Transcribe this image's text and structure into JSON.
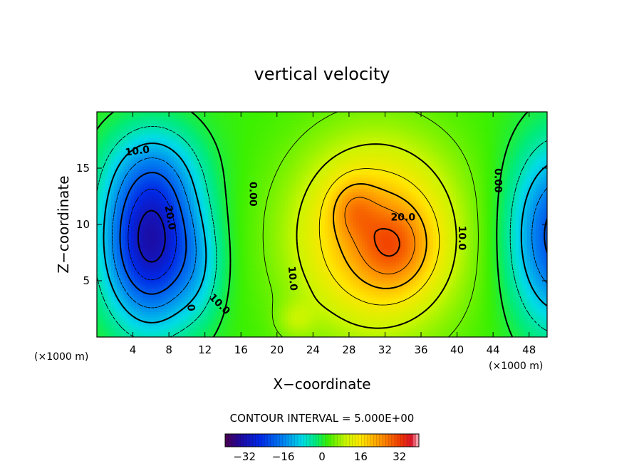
{
  "chart_data": {
    "type": "heatmap",
    "title": "vertical velocity",
    "xlabel": "X−coordinate",
    "ylabel": "Z−coordinate",
    "x_unit_left": "(×1000 m)",
    "x_unit_right": "(×1000 m)",
    "xlim": [
      0,
      50
    ],
    "ylim": [
      0,
      20
    ],
    "x_ticks": [
      4,
      8,
      12,
      16,
      20,
      24,
      28,
      32,
      36,
      40,
      44,
      48
    ],
    "x_tick_labels": [
      "4",
      "8",
      "12",
      "16",
      "20",
      "24",
      "28",
      "32",
      "36",
      "40",
      "44",
      "48"
    ],
    "y_ticks": [
      5,
      10,
      15
    ],
    "y_tick_labels": [
      "5",
      "10",
      "15"
    ],
    "contour_interval_text": "CONTOUR INTERVAL = 5.000E+00",
    "contour_interval": 5.0,
    "color_range": [
      -40,
      40
    ],
    "colorbar_ticks": [
      -32,
      -16,
      0,
      16,
      32
    ],
    "colorbar_labels": [
      "−32",
      "−16",
      "0",
      "16",
      "32"
    ],
    "contour_labels": [
      {
        "text": "10.0",
        "x": 4.5,
        "y": 16.5,
        "angle": -8
      },
      {
        "text": "20.0",
        "x": 8.1,
        "y": 10.6,
        "angle": 80
      },
      {
        "text": "0.00",
        "x": 17.3,
        "y": 12.7,
        "angle": 90
      },
      {
        "text": "0",
        "x": 10.4,
        "y": 2.6,
        "angle": 85
      },
      {
        "text": "10.0",
        "x": 13.6,
        "y": 2.9,
        "angle": 45
      },
      {
        "text": "10.0",
        "x": 21.7,
        "y": 5.2,
        "angle": 85
      },
      {
        "text": "20.0",
        "x": 34.0,
        "y": 10.6,
        "angle": 0
      },
      {
        "text": "10.0",
        "x": 40.5,
        "y": 8.8,
        "angle": 90
      },
      {
        "text": "0.00",
        "x": 44.5,
        "y": 13.9,
        "angle": 90
      }
    ],
    "field": {
      "background": 2.0,
      "features": [
        {
          "amp": -34,
          "x": 6.0,
          "y": 8.5,
          "sx": 3.6,
          "sy": 5.0
        },
        {
          "amp": -6,
          "x": 6.5,
          "y": 15.0,
          "sx": 4.0,
          "sy": 3.0
        },
        {
          "amp": -5,
          "x": 11.5,
          "y": 6.0,
          "sx": 2.0,
          "sy": 3.5
        },
        {
          "amp": 20,
          "x": 31.0,
          "y": 9.0,
          "sx": 6.5,
          "sy": 6.0
        },
        {
          "amp": 10,
          "x": 33.0,
          "y": 8.0,
          "sx": 2.8,
          "sy": 2.6
        },
        {
          "amp": 7,
          "x": 28.5,
          "y": 11.5,
          "sx": 1.8,
          "sy": 1.8
        },
        {
          "amp": -25,
          "x": 51.5,
          "y": 9.0,
          "sx": 3.8,
          "sy": 5.5
        },
        {
          "amp": 4,
          "x": 22.0,
          "y": 1.5,
          "sx": 1.5,
          "sy": 1.2
        }
      ]
    }
  }
}
